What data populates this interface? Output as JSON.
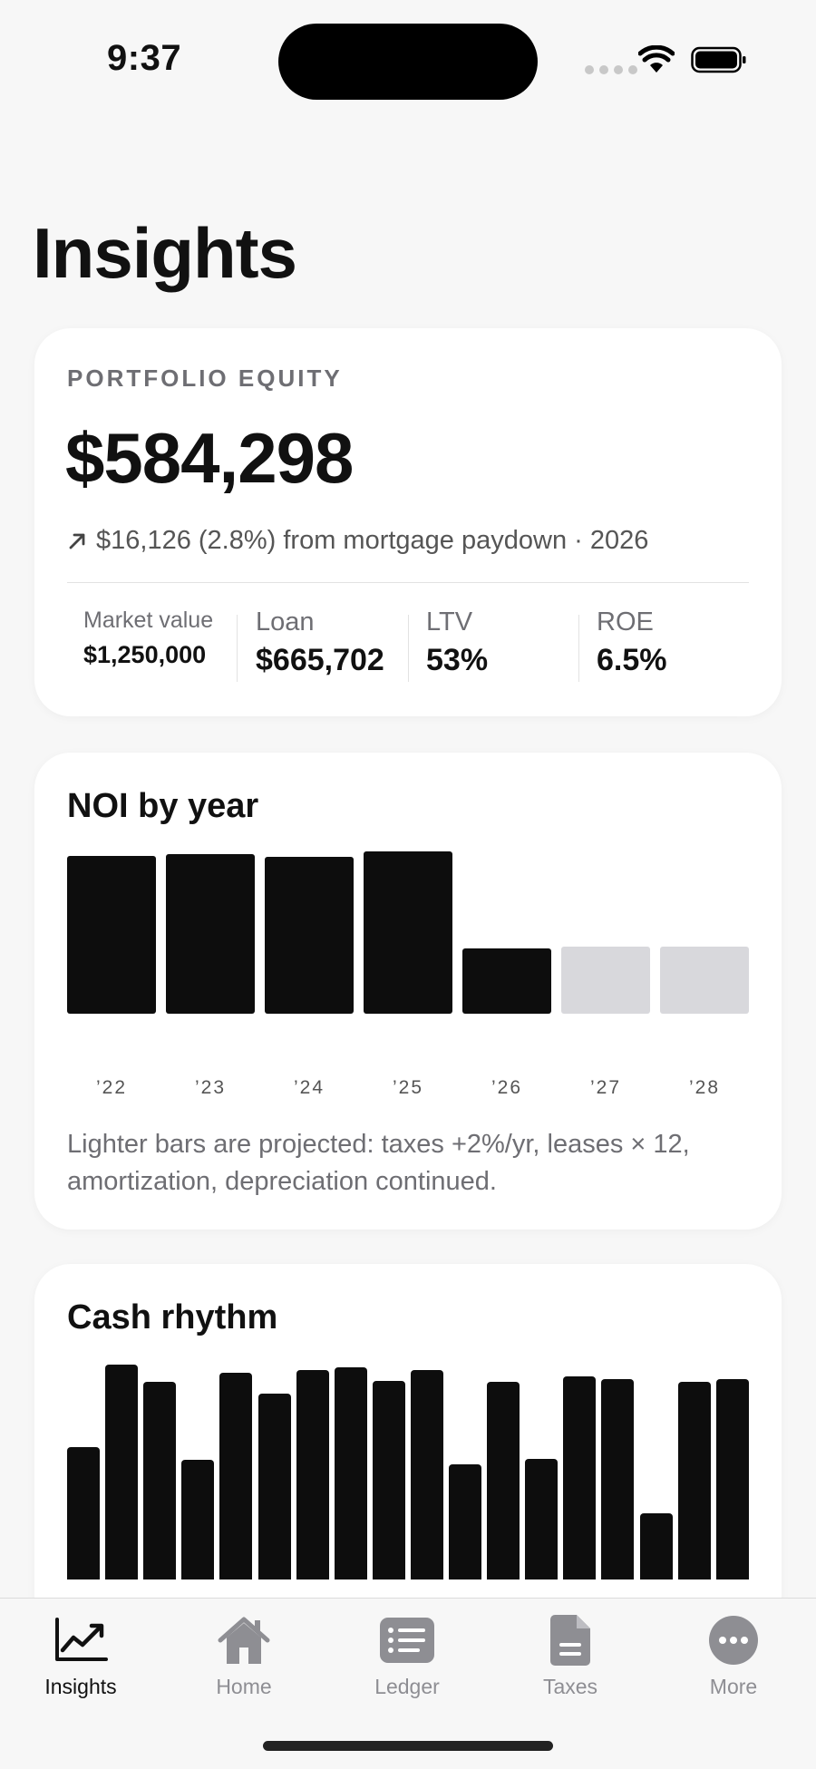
{
  "status_bar": {
    "time": "9:37"
  },
  "page": {
    "title": "Insights"
  },
  "equity": {
    "label": "PORTFOLIO EQUITY",
    "value": "$584,298",
    "change": "$16,126 (2.8%) from mortgage paydown · 2026",
    "change_icon": "arrow-up-right-icon",
    "stats": [
      {
        "label": "Market value",
        "value": "$1,250,000"
      },
      {
        "label": "Loan",
        "value": "$665,702"
      },
      {
        "label": "LTV",
        "value": "53%"
      },
      {
        "label": "ROE",
        "value": "6.5%"
      }
    ]
  },
  "noi": {
    "title": "NOI by year",
    "note": "Lighter bars are projected: taxes +2%/yr, leases × 12, amortization, depreciation continued."
  },
  "cash": {
    "title": "Cash rhythm"
  },
  "colors": {
    "actual_bar": "#0d0d0d",
    "projected_bar": "#d8d8dc",
    "accent": "#111111",
    "muted": "#8e8e93"
  },
  "chart_data": [
    {
      "type": "bar",
      "title": "NOI by year",
      "categories": [
        "’22",
        "’23",
        "’24",
        "’25",
        "’26",
        "’27",
        "’28"
      ],
      "values": [
        232,
        234,
        231,
        238,
        96,
        99,
        98
      ],
      "projected": [
        false,
        false,
        false,
        false,
        false,
        true,
        true
      ],
      "ylim": [
        0,
        240
      ],
      "grid": false,
      "legend": "none"
    },
    {
      "type": "bar",
      "title": "Cash rhythm",
      "values": [
        146,
        237,
        218,
        132,
        228,
        205,
        231,
        234,
        219,
        231,
        127,
        218,
        133,
        224,
        221,
        73,
        218,
        221
      ],
      "ylim": [
        0,
        240
      ],
      "grid": false,
      "legend": "none"
    }
  ],
  "tab_bar": {
    "tabs": [
      {
        "label": "Insights",
        "icon": "chart-line-icon",
        "active": true
      },
      {
        "label": "Home",
        "icon": "house-icon",
        "active": false
      },
      {
        "label": "Ledger",
        "icon": "list-icon",
        "active": false
      },
      {
        "label": "Taxes",
        "icon": "document-icon",
        "active": false
      },
      {
        "label": "More",
        "icon": "ellipsis-icon",
        "active": false
      }
    ]
  }
}
